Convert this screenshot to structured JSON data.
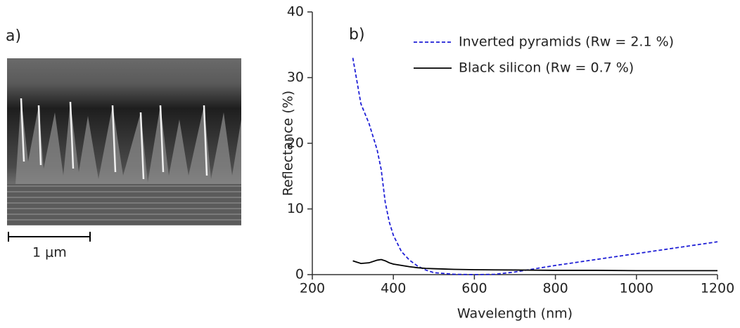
{
  "chart_data": {
    "type": "line",
    "panel_labels": [
      "a)",
      "b)"
    ],
    "scale_bar_label": "1 μm",
    "x_label": "Wavelength (nm)",
    "y_label": "Reflectance (%)",
    "x": [
      300,
      320,
      340,
      360,
      370,
      380,
      390,
      400,
      420,
      440,
      460,
      480,
      500,
      550,
      600,
      650,
      700,
      800,
      900,
      1000,
      1100,
      1200
    ],
    "series": [
      {
        "name": "Inverted pyramids (Rw = 2.1 %)",
        "color": "#1f1fd6",
        "dash": true,
        "values": [
          33,
          26,
          23,
          19,
          16,
          11,
          8,
          6,
          3.5,
          2.2,
          1.3,
          0.7,
          0.3,
          0.05,
          0,
          0.05,
          0.4,
          1.4,
          2.3,
          3.2,
          4.1,
          5.0
        ]
      },
      {
        "name": "Black silicon (Rw = 0.7 %)",
        "color": "#000000",
        "dash": false,
        "values": [
          2.1,
          1.7,
          1.8,
          2.2,
          2.3,
          2.1,
          1.8,
          1.6,
          1.4,
          1.2,
          1.05,
          0.95,
          0.9,
          0.8,
          0.75,
          0.72,
          0.7,
          0.65,
          0.65,
          0.6,
          0.6,
          0.6
        ]
      }
    ],
    "xlim": [
      200,
      1200
    ],
    "xticks": [
      200,
      400,
      600,
      800,
      1000,
      1200
    ],
    "ylim": [
      0,
      40
    ],
    "yticks": [
      0,
      10,
      20,
      30,
      40
    ],
    "legend": "top-right"
  }
}
